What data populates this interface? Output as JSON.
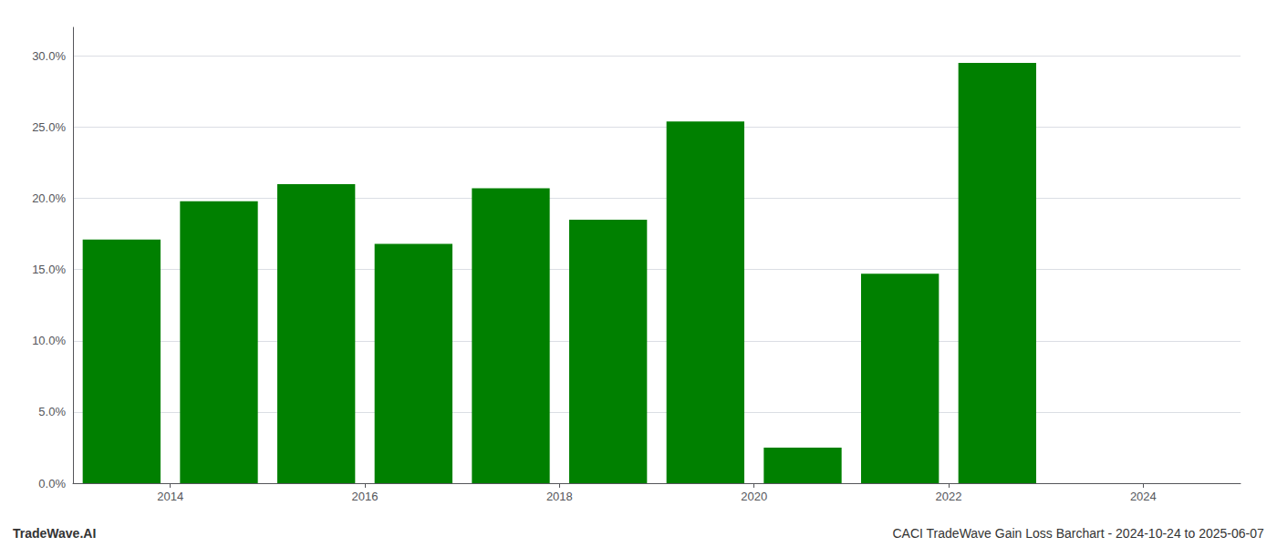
{
  "chart_data": {
    "type": "bar",
    "x": [
      2013.5,
      2014.5,
      2015.5,
      2016.5,
      2017.5,
      2018.5,
      2019.5,
      2020.5,
      2021.5,
      2022.5
    ],
    "values": [
      0.171,
      0.198,
      0.21,
      0.168,
      0.207,
      0.185,
      0.254,
      0.025,
      0.147,
      0.295
    ],
    "color": "#008000",
    "xlim": [
      2013.0,
      2025.0
    ],
    "xticks": [
      2014,
      2016,
      2018,
      2020,
      2022,
      2024
    ],
    "ylim": [
      0.0,
      0.32
    ],
    "yticks": [
      {
        "value": 0.0,
        "label": "0.0%"
      },
      {
        "value": 0.05,
        "label": "5.0%"
      },
      {
        "value": 0.1,
        "label": "10.0%"
      },
      {
        "value": 0.15,
        "label": "15.0%"
      },
      {
        "value": 0.2,
        "label": "20.0%"
      },
      {
        "value": 0.25,
        "label": "25.0%"
      },
      {
        "value": 0.3,
        "label": "30.0%"
      }
    ],
    "grid": true,
    "annotations": [
      "TradeWave.AI",
      "CACI TradeWave Gain Loss Barchart - 2024-10-24 to 2025-06-07"
    ]
  }
}
